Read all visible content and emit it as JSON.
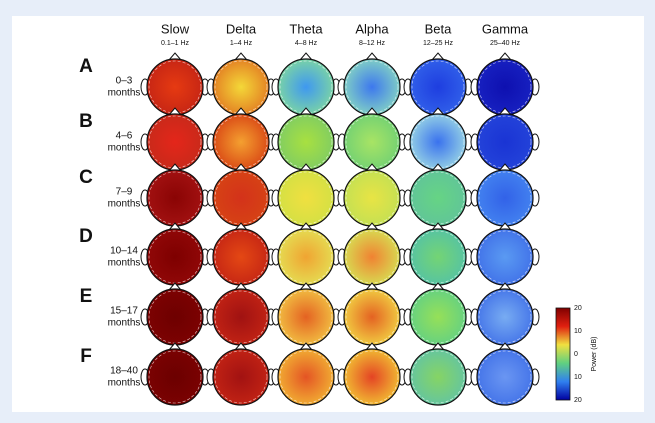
{
  "figure": {
    "columns": [
      {
        "name": "Slow",
        "range": "0.1–1 Hz"
      },
      {
        "name": "Delta",
        "range": "1–4 Hz"
      },
      {
        "name": "Theta",
        "range": "4–8 Hz"
      },
      {
        "name": "Alpha",
        "range": "8–12 Hz"
      },
      {
        "name": "Beta",
        "range": "12–25 Hz"
      },
      {
        "name": "Gamma",
        "range": "25–40 Hz"
      }
    ],
    "rows": [
      {
        "letter": "A",
        "age": [
          "0–3",
          "months"
        ],
        "colors": [
          [
            "#e63a12",
            "#c42414"
          ],
          [
            "#f4d838",
            "#e27a22"
          ],
          [
            "#3f98f0",
            "#7fd8a0"
          ],
          [
            "#3d78ee",
            "#86d6c2"
          ],
          [
            "#1e3ee0",
            "#3262ea"
          ],
          [
            "#0e10b0",
            "#1822c2"
          ]
        ]
      },
      {
        "letter": "B",
        "age": [
          "4–6",
          "months"
        ],
        "colors": [
          [
            "#e4261a",
            "#c62a1a"
          ],
          [
            "#f4a030",
            "#d84414"
          ],
          [
            "#a8e040",
            "#7ecc64"
          ],
          [
            "#a8e464",
            "#70d074"
          ],
          [
            "#3a72ee",
            "#9ad6e4"
          ],
          [
            "#1a34d4",
            "#2444da"
          ]
        ]
      },
      {
        "letter": "C",
        "age": [
          "7–9",
          "months"
        ],
        "colors": [
          [
            "#8a0404",
            "#a41212"
          ],
          [
            "#d4321a",
            "#d64414"
          ],
          [
            "#f0e040",
            "#d2e044"
          ],
          [
            "#e8e444",
            "#c2e054"
          ],
          [
            "#66d484",
            "#60c49a"
          ],
          [
            "#3262e8",
            "#4484f0"
          ]
        ]
      },
      {
        "letter": "D",
        "age": [
          "10–14",
          "months"
        ],
        "colors": [
          [
            "#7e0000",
            "#920808"
          ],
          [
            "#e44814",
            "#c42414"
          ],
          [
            "#f0a432",
            "#e4e054"
          ],
          [
            "#f08232",
            "#d6e254"
          ],
          [
            "#74d474",
            "#54c2a6"
          ],
          [
            "#5a9af2",
            "#4070e8"
          ]
        ]
      },
      {
        "letter": "E",
        "age": [
          "15–17",
          "months"
        ],
        "colors": [
          [
            "#6e0000",
            "#7e0202"
          ],
          [
            "#a01212",
            "#c42414"
          ],
          [
            "#e46222",
            "#f2c444"
          ],
          [
            "#e46222",
            "#f2d444"
          ],
          [
            "#96e058",
            "#62d084"
          ],
          [
            "#78acf2",
            "#4272e8"
          ]
        ]
      },
      {
        "letter": "F",
        "age": [
          "18–40",
          "months"
        ],
        "colors": [
          [
            "#6c0000",
            "#7c0202"
          ],
          [
            "#a21212",
            "#c42414"
          ],
          [
            "#e45424",
            "#f2b434"
          ],
          [
            "#e44424",
            "#f2c434"
          ],
          [
            "#86d464",
            "#62c4a4"
          ],
          [
            "#6a96f2",
            "#4272e8"
          ]
        ]
      }
    ],
    "colorbar": {
      "label": "Power (dB)",
      "ticks": [
        "20",
        "10",
        "0",
        "10",
        "20"
      ],
      "colors": [
        "#800000",
        "#e02010",
        "#f0e040",
        "#60d080",
        "#3080f0",
        "#0000a0"
      ]
    }
  }
}
